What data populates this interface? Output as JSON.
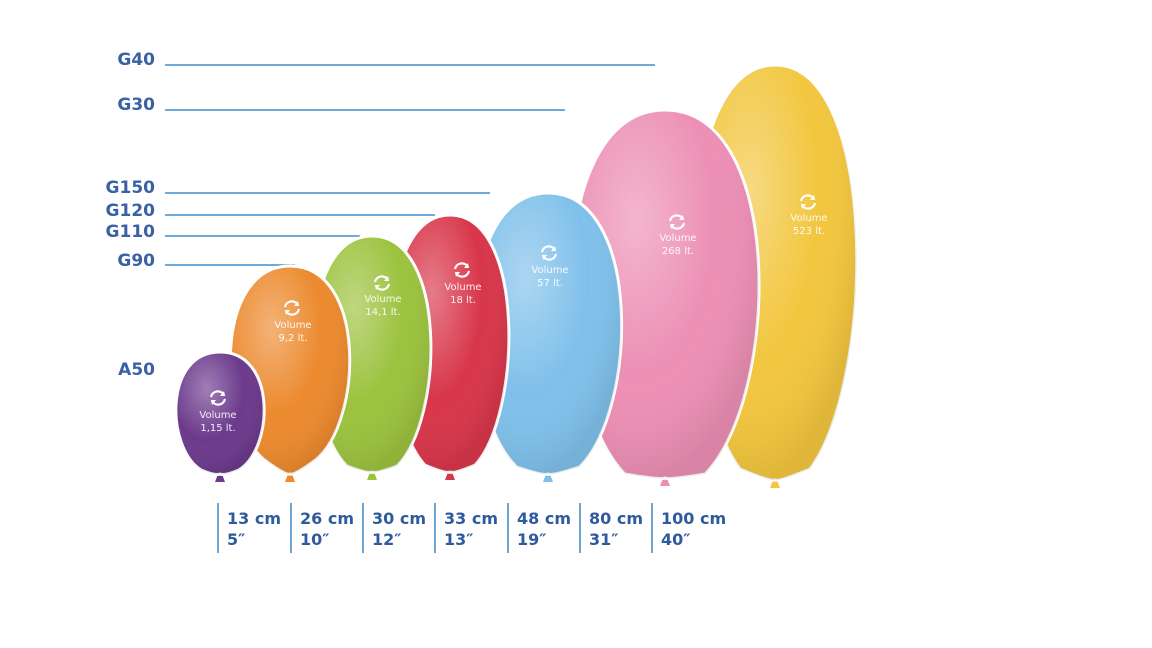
{
  "balloons": [
    {
      "code": "A50",
      "color": "#6c3a8c",
      "volume_label": "Volume",
      "volume": "1,15 lt.",
      "size_cm": "13 cm",
      "size_in": "5″"
    },
    {
      "code": "G90",
      "color": "#ec8a2e",
      "volume_label": "Volume",
      "volume": "9,2 lt.",
      "size_cm": "26 cm",
      "size_in": "10″"
    },
    {
      "code": "G110",
      "color": "#9cc23e",
      "volume_label": "Volume",
      "volume": "14,1 lt.",
      "size_cm": "30 cm",
      "size_in": "12″"
    },
    {
      "code": "G120",
      "color": "#d8364a",
      "volume_label": "Volume",
      "volume": "18 lt.",
      "size_cm": "33 cm",
      "size_in": "13″"
    },
    {
      "code": "G150",
      "color": "#7fc0ea",
      "volume_label": "Volume",
      "volume": "57 lt.",
      "size_cm": "48 cm",
      "size_in": "19″"
    },
    {
      "code": "G30",
      "color": "#ec8fb4",
      "volume_label": "Volume",
      "volume": "268 lt.",
      "size_cm": "80 cm",
      "size_in": "31″"
    },
    {
      "code": "G40",
      "color": "#f2c63e",
      "volume_label": "Volume",
      "volume": "523 lt.",
      "size_cm": "100 cm",
      "size_in": "40″"
    }
  ],
  "icon": "refresh-cycle-icon",
  "colors": {
    "label": "#3a61a4",
    "guide": "#3f8fcf",
    "size_text": "#2f5a9e"
  }
}
